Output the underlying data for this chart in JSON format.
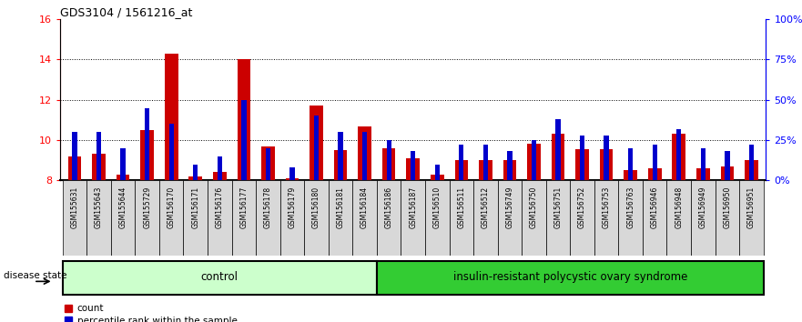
{
  "title": "GDS3104 / 1561216_at",
  "samples": [
    "GSM155631",
    "GSM155643",
    "GSM155644",
    "GSM155729",
    "GSM156170",
    "GSM156171",
    "GSM156176",
    "GSM156177",
    "GSM156178",
    "GSM156179",
    "GSM156180",
    "GSM156181",
    "GSM156184",
    "GSM156186",
    "GSM156187",
    "GSM156510",
    "GSM156511",
    "GSM156512",
    "GSM156749",
    "GSM156750",
    "GSM156751",
    "GSM156752",
    "GSM156753",
    "GSM156763",
    "GSM156946",
    "GSM156948",
    "GSM156949",
    "GSM156950",
    "GSM156951"
  ],
  "count_values": [
    9.2,
    9.3,
    8.3,
    10.5,
    14.3,
    8.2,
    8.4,
    14.0,
    9.7,
    8.1,
    11.7,
    9.5,
    10.7,
    9.6,
    9.1,
    8.3,
    9.0,
    9.0,
    9.0,
    9.8,
    10.3,
    9.55,
    9.55,
    8.5,
    8.6,
    10.3,
    8.6,
    8.7,
    9.0
  ],
  "percentile_values": [
    30,
    30,
    20,
    45,
    35,
    10,
    15,
    50,
    20,
    8,
    40,
    30,
    30,
    25,
    18,
    10,
    22,
    22,
    18,
    25,
    38,
    28,
    28,
    20,
    22,
    32,
    20,
    18,
    22
  ],
  "group_control_count": 13,
  "group_disease_count": 16,
  "ylim_left": [
    8,
    16
  ],
  "ylim_right": [
    0,
    100
  ],
  "yticks_left": [
    8,
    10,
    12,
    14,
    16
  ],
  "yticks_right": [
    0,
    25,
    50,
    75,
    100
  ],
  "ytick_labels_right": [
    "0%",
    "25%",
    "50%",
    "75%",
    "100%"
  ],
  "count_color": "#cc0000",
  "percentile_color": "#0000cc",
  "control_bg": "#ccffcc",
  "disease_bg": "#33cc33",
  "base_value": 8.0,
  "legend_count_label": "count",
  "legend_percentile_label": "percentile rank within the sample",
  "group_label_control": "control",
  "group_label_disease": "insulin-resistant polycystic ovary syndrome",
  "disease_state_label": "disease state"
}
